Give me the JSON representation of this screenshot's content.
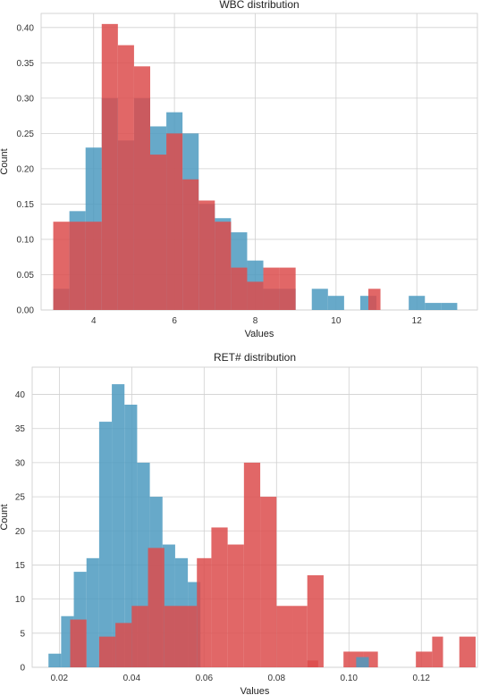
{
  "colors": {
    "blue": "#4c9ac0",
    "red": "#dc4c4c",
    "grid": "#d0d0d0",
    "frame": "#cccccc"
  },
  "chart_data": [
    {
      "type": "histogram",
      "title": "WBC distribution",
      "xlabel": "Values",
      "ylabel": "Count",
      "xlim": [
        2.7,
        13.5
      ],
      "ylim": [
        0,
        0.42
      ],
      "xticks": [
        4,
        6,
        8,
        10,
        12
      ],
      "xtick_labels": [
        "4",
        "6",
        "8",
        "10",
        "12"
      ],
      "yticks": [
        0,
        0.05,
        0.1,
        0.15,
        0.2,
        0.25,
        0.3,
        0.35,
        0.4
      ],
      "ytick_labels": [
        "0.00",
        "0.05",
        "0.10",
        "0.15",
        "0.20",
        "0.25",
        "0.30",
        "0.35",
        "0.40"
      ],
      "grid": true,
      "series": [
        {
          "color": "blue",
          "bin_edges": [
            3.0,
            3.4,
            3.8,
            4.2,
            4.6,
            5.0,
            5.4,
            5.8,
            6.2,
            6.6,
            7.0,
            7.4,
            7.8,
            8.2,
            8.6,
            9.0,
            9.4,
            9.8,
            10.2,
            10.6,
            11.0,
            11.4,
            11.8,
            12.2,
            12.6,
            13.0
          ],
          "values": [
            0.03,
            0.14,
            0.23,
            0.3,
            0.24,
            0.3,
            0.26,
            0.28,
            0.25,
            0.15,
            0.13,
            0.11,
            0.07,
            0.03,
            0.03,
            0.0,
            0.03,
            0.02,
            0.0,
            0.02,
            0.0,
            0.0,
            0.02,
            0.01,
            0.01
          ]
        },
        {
          "color": "red",
          "bin_edges": [
            3.0,
            3.4,
            3.8,
            4.2,
            4.6,
            5.0,
            5.4,
            5.8,
            6.2,
            6.6,
            7.0,
            7.4,
            7.8,
            8.2,
            8.6,
            9.0,
            9.4,
            9.8,
            10.2,
            10.6,
            11.0,
            11.4,
            11.8,
            12.2,
            12.6,
            13.0
          ],
          "values": [
            0.125,
            0.125,
            0.125,
            0.405,
            0.375,
            0.345,
            0.22,
            0.25,
            0.185,
            0.155,
            0.125,
            0.06,
            0.04,
            0.06,
            0.06,
            0.0,
            0.0,
            0.0,
            0.0,
            0.0,
            0.0,
            0.0,
            0.0,
            0.0,
            0.0
          ]
        }
      ],
      "extra_bars": [
        {
          "series": 1,
          "x0": 10.8,
          "x1": 11.1,
          "value": 0.03
        }
      ]
    },
    {
      "type": "histogram",
      "title": "RET# distribution",
      "xlabel": "Values",
      "ylabel": "Count",
      "xlim": [
        0.0125,
        0.1355
      ],
      "ylim": [
        0,
        44
      ],
      "xticks": [
        0.02,
        0.04,
        0.06,
        0.08,
        0.1,
        0.12
      ],
      "xtick_labels": [
        "0.02",
        "0.04",
        "0.06",
        "0.08",
        "0.10",
        "0.12"
      ],
      "yticks": [
        0,
        5,
        10,
        15,
        20,
        25,
        30,
        35,
        40
      ],
      "ytick_labels": [
        "0",
        "5",
        "10",
        "15",
        "20",
        "25",
        "30",
        "35",
        "40"
      ],
      "grid": true,
      "series": [
        {
          "color": "blue",
          "bin_edges": [
            0.017,
            0.0205,
            0.024,
            0.0275,
            0.031,
            0.0345,
            0.038,
            0.0415,
            0.045,
            0.0485,
            0.052,
            0.0555,
            0.059,
            0.0625
          ],
          "values": [
            2,
            7.5,
            14,
            16,
            36,
            41.5,
            38.5,
            30,
            25,
            18,
            16,
            12.5,
            0
          ]
        },
        {
          "color": "red",
          "bin_edges": [
            0.023,
            0.0275,
            0.031,
            0.0355,
            0.04,
            0.0445,
            0.049,
            0.0535,
            0.058,
            0.062,
            0.0665,
            0.071,
            0.0755,
            0.08,
            0.0845,
            0.0885,
            0.093
          ],
          "values": [
            7,
            0,
            4.5,
            6.5,
            9,
            17.5,
            9,
            9,
            16,
            20.5,
            18,
            30,
            25,
            9,
            9,
            13.5
          ]
        }
      ],
      "extra_bars": [
        {
          "series": 1,
          "x0": 0.0885,
          "x1": 0.0915,
          "value": 1
        },
        {
          "series": 1,
          "x0": 0.0985,
          "x1": 0.104,
          "value": 2.3
        },
        {
          "series": 1,
          "x0": 0.104,
          "x1": 0.108,
          "value": 2.3
        },
        {
          "series": 1,
          "x0": 0.1185,
          "x1": 0.123,
          "value": 2.3
        },
        {
          "series": 1,
          "x0": 0.123,
          "x1": 0.126,
          "value": 4.5
        },
        {
          "series": 1,
          "x0": 0.1305,
          "x1": 0.135,
          "value": 4.5
        },
        {
          "series": 0,
          "x0": 0.102,
          "x1": 0.1055,
          "value": 1.5
        }
      ]
    }
  ]
}
